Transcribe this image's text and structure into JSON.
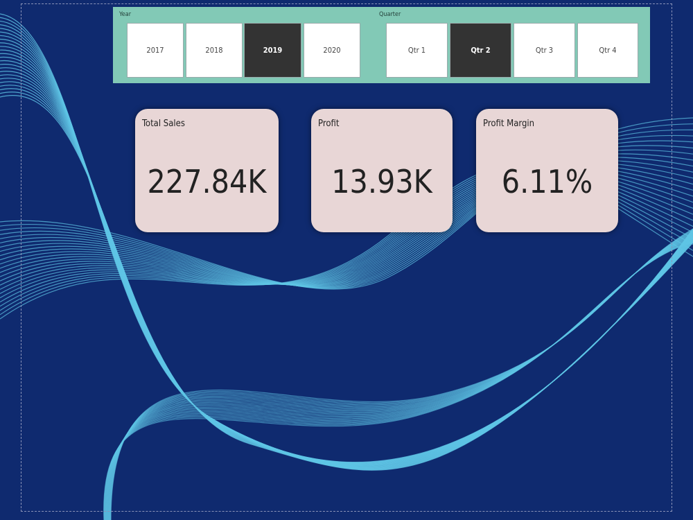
{
  "slicers": [
    {
      "title": "Year",
      "options": [
        "2017",
        "2018",
        "2019",
        "2020"
      ],
      "selected": 2
    },
    {
      "title": "Quarter",
      "options": [
        "Qtr 1",
        "Qtr 2",
        "Qtr 3",
        "Qtr 4"
      ],
      "selected": 1
    }
  ],
  "cards": [
    {
      "label": "Total Sales",
      "value": "227.84K"
    },
    {
      "label": "Profit",
      "value": "13.93K"
    },
    {
      "label": "Profit Margin",
      "value": "6.11%"
    }
  ]
}
